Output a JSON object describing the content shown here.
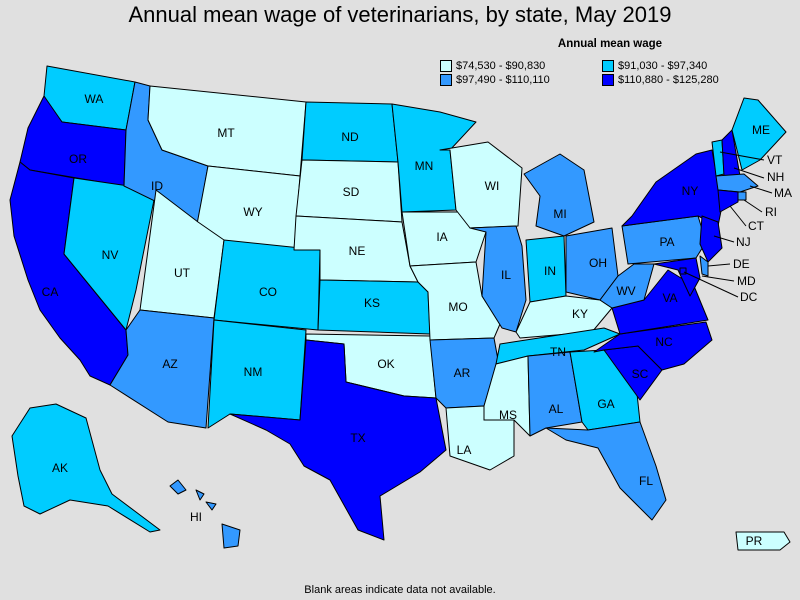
{
  "title": "Annual mean wage of veterinarians, by state, May 2019",
  "legend": {
    "title": "Annual mean wage",
    "items": [
      {
        "label": "$74,530 - $90,830",
        "color": "#ccffff"
      },
      {
        "label": "$91,030 - $97,340",
        "color": "#00ccff"
      },
      {
        "label": "$97,490 - $110,110",
        "color": "#3399ff"
      },
      {
        "label": "$110,880 - $125,280",
        "color": "#0000ff"
      }
    ]
  },
  "states": [
    {
      "abbr": "WA",
      "tier": 1
    },
    {
      "abbr": "OR",
      "tier": 3
    },
    {
      "abbr": "CA",
      "tier": 3
    },
    {
      "abbr": "NV",
      "tier": 1
    },
    {
      "abbr": "ID",
      "tier": 2
    },
    {
      "abbr": "MT",
      "tier": 0
    },
    {
      "abbr": "WY",
      "tier": 0
    },
    {
      "abbr": "UT",
      "tier": 0
    },
    {
      "abbr": "AZ",
      "tier": 2
    },
    {
      "abbr": "CO",
      "tier": 1
    },
    {
      "abbr": "NM",
      "tier": 1
    },
    {
      "abbr": "ND",
      "tier": 1
    },
    {
      "abbr": "SD",
      "tier": 0
    },
    {
      "abbr": "NE",
      "tier": 0
    },
    {
      "abbr": "KS",
      "tier": 1
    },
    {
      "abbr": "OK",
      "tier": 0
    },
    {
      "abbr": "TX",
      "tier": 3
    },
    {
      "abbr": "MN",
      "tier": 1
    },
    {
      "abbr": "IA",
      "tier": 0
    },
    {
      "abbr": "MO",
      "tier": 0
    },
    {
      "abbr": "AR",
      "tier": 2
    },
    {
      "abbr": "LA",
      "tier": 0
    },
    {
      "abbr": "WI",
      "tier": 0
    },
    {
      "abbr": "IL",
      "tier": 2
    },
    {
      "abbr": "MI",
      "tier": 2
    },
    {
      "abbr": "IN",
      "tier": 1
    },
    {
      "abbr": "OH",
      "tier": 2
    },
    {
      "abbr": "KY",
      "tier": 0
    },
    {
      "abbr": "TN",
      "tier": 1
    },
    {
      "abbr": "MS",
      "tier": 0
    },
    {
      "abbr": "AL",
      "tier": 2
    },
    {
      "abbr": "GA",
      "tier": 1
    },
    {
      "abbr": "FL",
      "tier": 2
    },
    {
      "abbr": "SC",
      "tier": 3
    },
    {
      "abbr": "NC",
      "tier": 3
    },
    {
      "abbr": "VA",
      "tier": 3
    },
    {
      "abbr": "WV",
      "tier": 2
    },
    {
      "abbr": "PA",
      "tier": 2
    },
    {
      "abbr": "NY",
      "tier": 3
    },
    {
      "abbr": "VT",
      "tier": 1
    },
    {
      "abbr": "NH",
      "tier": 3
    },
    {
      "abbr": "ME",
      "tier": 1
    },
    {
      "abbr": "MA",
      "tier": 2
    },
    {
      "abbr": "RI",
      "tier": 2
    },
    {
      "abbr": "CT",
      "tier": 3
    },
    {
      "abbr": "NJ",
      "tier": 3
    },
    {
      "abbr": "DE",
      "tier": 2
    },
    {
      "abbr": "MD",
      "tier": 3
    },
    {
      "abbr": "DC",
      "tier": 3
    },
    {
      "abbr": "AK",
      "tier": 1
    },
    {
      "abbr": "HI",
      "tier": 2
    },
    {
      "abbr": "PR",
      "tier": 0
    }
  ],
  "footnote": "Blank areas indicate data not available."
}
